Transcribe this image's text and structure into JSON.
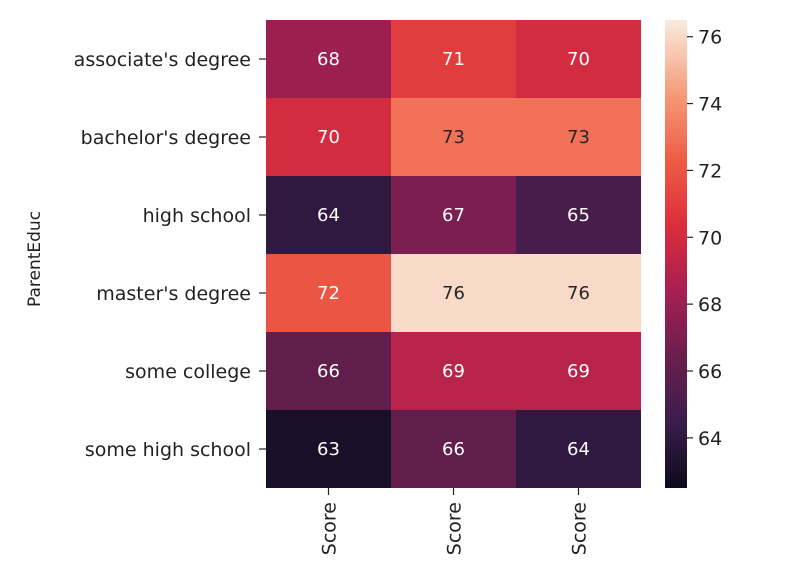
{
  "chart_data": {
    "type": "heatmap",
    "title": "",
    "xlabel": "",
    "ylabel": "ParentEduc",
    "rows": [
      "associate's degree",
      "bachelor's degree",
      "high school",
      "master's degree",
      "some college",
      "some high school"
    ],
    "columns": [
      "Score",
      "Score",
      "Score"
    ],
    "values": [
      [
        68,
        71,
        70
      ],
      [
        70,
        73,
        73
      ],
      [
        64,
        67,
        65
      ],
      [
        72,
        76,
        76
      ],
      [
        66,
        69,
        69
      ],
      [
        63,
        66,
        64
      ]
    ],
    "colormap": "rocket",
    "colorbar": {
      "range": [
        62.5,
        76.5
      ],
      "ticks": [
        64,
        66,
        68,
        70,
        72,
        74,
        76
      ]
    },
    "grid": false,
    "legend": "colorbar-right"
  }
}
